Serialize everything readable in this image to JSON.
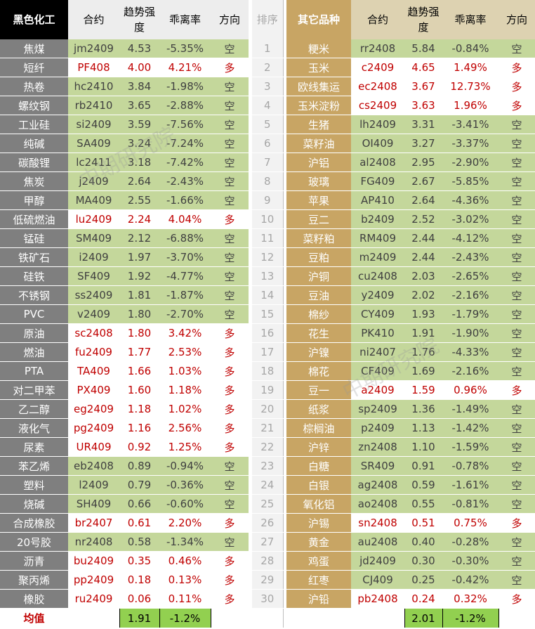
{
  "header": {
    "left_title": "黑色化工",
    "contract": "合约",
    "strength": "趋势强度",
    "deviation": "乖离率",
    "direction": "方向",
    "rank": "排序",
    "right_title": "其它品种"
  },
  "rows": [
    {
      "rank": "1",
      "left": {
        "name": "焦煤",
        "contract": "jm2409",
        "strength": "4.53",
        "deviation": "-5.35%",
        "direction": "空",
        "dir": "short"
      },
      "right": {
        "name": "粳米",
        "contract": "rr2408",
        "strength": "5.84",
        "deviation": "-0.84%",
        "direction": "空",
        "dir": "short"
      }
    },
    {
      "rank": "2",
      "left": {
        "name": "短纤",
        "contract": "PF408",
        "strength": "4.00",
        "deviation": "4.21%",
        "direction": "多",
        "dir": "long"
      },
      "right": {
        "name": "玉米",
        "contract": "c2409",
        "strength": "4.65",
        "deviation": "1.49%",
        "direction": "多",
        "dir": "long"
      }
    },
    {
      "rank": "3",
      "left": {
        "name": "热卷",
        "contract": "hc2410",
        "strength": "3.84",
        "deviation": "-1.98%",
        "direction": "空",
        "dir": "short"
      },
      "right": {
        "name": "欧线集运",
        "contract": "ec2408",
        "strength": "3.67",
        "deviation": "12.73%",
        "direction": "多",
        "dir": "long"
      }
    },
    {
      "rank": "4",
      "left": {
        "name": "螺纹钢",
        "contract": "rb2410",
        "strength": "3.65",
        "deviation": "-2.88%",
        "direction": "空",
        "dir": "short"
      },
      "right": {
        "name": "玉米淀粉",
        "contract": "cs2409",
        "strength": "3.63",
        "deviation": "1.96%",
        "direction": "多",
        "dir": "long"
      }
    },
    {
      "rank": "5",
      "left": {
        "name": "工业硅",
        "contract": "si2409",
        "strength": "3.59",
        "deviation": "-7.56%",
        "direction": "空",
        "dir": "short"
      },
      "right": {
        "name": "生猪",
        "contract": "lh2409",
        "strength": "3.31",
        "deviation": "-3.41%",
        "direction": "空",
        "dir": "short"
      }
    },
    {
      "rank": "6",
      "left": {
        "name": "纯碱",
        "contract": "SA409",
        "strength": "3.24",
        "deviation": "-7.24%",
        "direction": "空",
        "dir": "short"
      },
      "right": {
        "name": "菜籽油",
        "contract": "OI409",
        "strength": "3.27",
        "deviation": "-3.37%",
        "direction": "空",
        "dir": "short"
      }
    },
    {
      "rank": "7",
      "left": {
        "name": "碳酸锂",
        "contract": "lc2411",
        "strength": "3.18",
        "deviation": "-7.42%",
        "direction": "空",
        "dir": "short"
      },
      "right": {
        "name": "沪铝",
        "contract": "al2408",
        "strength": "2.95",
        "deviation": "-2.90%",
        "direction": "空",
        "dir": "short"
      }
    },
    {
      "rank": "8",
      "left": {
        "name": "焦炭",
        "contract": "j2409",
        "strength": "2.64",
        "deviation": "-2.43%",
        "direction": "空",
        "dir": "short"
      },
      "right": {
        "name": "玻璃",
        "contract": "FG409",
        "strength": "2.67",
        "deviation": "-5.85%",
        "direction": "空",
        "dir": "short"
      }
    },
    {
      "rank": "9",
      "left": {
        "name": "甲醇",
        "contract": "MA409",
        "strength": "2.55",
        "deviation": "-1.66%",
        "direction": "空",
        "dir": "short"
      },
      "right": {
        "name": "苹果",
        "contract": "AP410",
        "strength": "2.64",
        "deviation": "-4.36%",
        "direction": "空",
        "dir": "short"
      }
    },
    {
      "rank": "10",
      "left": {
        "name": "低硫燃油",
        "contract": "lu2409",
        "strength": "2.24",
        "deviation": "4.04%",
        "direction": "多",
        "dir": "long"
      },
      "right": {
        "name": "豆二",
        "contract": "b2409",
        "strength": "2.52",
        "deviation": "-3.02%",
        "direction": "空",
        "dir": "short"
      }
    },
    {
      "rank": "11",
      "left": {
        "name": "锰硅",
        "contract": "SM409",
        "strength": "2.12",
        "deviation": "-6.88%",
        "direction": "空",
        "dir": "short"
      },
      "right": {
        "name": "菜籽粕",
        "contract": "RM409",
        "strength": "2.44",
        "deviation": "-4.12%",
        "direction": "空",
        "dir": "short"
      }
    },
    {
      "rank": "12",
      "left": {
        "name": "铁矿石",
        "contract": "i2409",
        "strength": "1.97",
        "deviation": "-3.70%",
        "direction": "空",
        "dir": "short"
      },
      "right": {
        "name": "豆粕",
        "contract": "m2409",
        "strength": "2.44",
        "deviation": "-2.43%",
        "direction": "空",
        "dir": "short"
      }
    },
    {
      "rank": "13",
      "left": {
        "name": "硅铁",
        "contract": "SF409",
        "strength": "1.92",
        "deviation": "-4.77%",
        "direction": "空",
        "dir": "short"
      },
      "right": {
        "name": "沪铜",
        "contract": "cu2408",
        "strength": "2.03",
        "deviation": "-2.65%",
        "direction": "空",
        "dir": "short"
      }
    },
    {
      "rank": "14",
      "left": {
        "name": "不锈钢",
        "contract": "ss2409",
        "strength": "1.81",
        "deviation": "-1.87%",
        "direction": "空",
        "dir": "short"
      },
      "right": {
        "name": "豆油",
        "contract": "y2409",
        "strength": "2.02",
        "deviation": "-2.16%",
        "direction": "空",
        "dir": "short"
      }
    },
    {
      "rank": "15",
      "left": {
        "name": "PVC",
        "contract": "v2409",
        "strength": "1.80",
        "deviation": "-2.70%",
        "direction": "空",
        "dir": "short"
      },
      "right": {
        "name": "棉纱",
        "contract": "CY409",
        "strength": "1.93",
        "deviation": "-1.79%",
        "direction": "空",
        "dir": "short"
      }
    },
    {
      "rank": "16",
      "left": {
        "name": "原油",
        "contract": "sc2408",
        "strength": "1.80",
        "deviation": "3.42%",
        "direction": "多",
        "dir": "long"
      },
      "right": {
        "name": "花生",
        "contract": "PK410",
        "strength": "1.91",
        "deviation": "-1.90%",
        "direction": "空",
        "dir": "short"
      }
    },
    {
      "rank": "17",
      "left": {
        "name": "燃油",
        "contract": "fu2409",
        "strength": "1.77",
        "deviation": "2.53%",
        "direction": "多",
        "dir": "long"
      },
      "right": {
        "name": "沪镍",
        "contract": "ni2407",
        "strength": "1.76",
        "deviation": "-4.33%",
        "direction": "空",
        "dir": "short"
      }
    },
    {
      "rank": "18",
      "left": {
        "name": "PTA",
        "contract": "TA409",
        "strength": "1.66",
        "deviation": "1.03%",
        "direction": "多",
        "dir": "long"
      },
      "right": {
        "name": "棉花",
        "contract": "CF409",
        "strength": "1.69",
        "deviation": "-2.16%",
        "direction": "空",
        "dir": "short"
      }
    },
    {
      "rank": "19",
      "left": {
        "name": "对二甲苯",
        "contract": "PX409",
        "strength": "1.60",
        "deviation": "1.18%",
        "direction": "多",
        "dir": "long"
      },
      "right": {
        "name": "豆一",
        "contract": "a2409",
        "strength": "1.59",
        "deviation": "0.96%",
        "direction": "多",
        "dir": "long"
      }
    },
    {
      "rank": "20",
      "left": {
        "name": "乙二醇",
        "contract": "eg2409",
        "strength": "1.18",
        "deviation": "1.02%",
        "direction": "多",
        "dir": "long"
      },
      "right": {
        "name": "纸浆",
        "contract": "sp2409",
        "strength": "1.36",
        "deviation": "-1.49%",
        "direction": "空",
        "dir": "short"
      }
    },
    {
      "rank": "21",
      "left": {
        "name": "液化气",
        "contract": "pg2409",
        "strength": "1.16",
        "deviation": "2.56%",
        "direction": "多",
        "dir": "long"
      },
      "right": {
        "name": "棕榈油",
        "contract": "p2409",
        "strength": "1.13",
        "deviation": "-1.42%",
        "direction": "空",
        "dir": "short"
      }
    },
    {
      "rank": "22",
      "left": {
        "name": "尿素",
        "contract": "UR409",
        "strength": "0.92",
        "deviation": "1.25%",
        "direction": "多",
        "dir": "long"
      },
      "right": {
        "name": "沪锌",
        "contract": "zn2408",
        "strength": "1.10",
        "deviation": "-1.59%",
        "direction": "空",
        "dir": "short"
      }
    },
    {
      "rank": "23",
      "left": {
        "name": "苯乙烯",
        "contract": "eb2408",
        "strength": "0.89",
        "deviation": "-0.94%",
        "direction": "空",
        "dir": "short"
      },
      "right": {
        "name": "白糖",
        "contract": "SR409",
        "strength": "0.91",
        "deviation": "-0.78%",
        "direction": "空",
        "dir": "short"
      }
    },
    {
      "rank": "24",
      "left": {
        "name": "塑料",
        "contract": "l2409",
        "strength": "0.79",
        "deviation": "-0.36%",
        "direction": "空",
        "dir": "short"
      },
      "right": {
        "name": "白银",
        "contract": "ag2408",
        "strength": "0.59",
        "deviation": "-1.61%",
        "direction": "空",
        "dir": "short"
      }
    },
    {
      "rank": "25",
      "left": {
        "name": "烧碱",
        "contract": "SH409",
        "strength": "0.66",
        "deviation": "-0.60%",
        "direction": "空",
        "dir": "short"
      },
      "right": {
        "name": "氧化铝",
        "contract": "ao2408",
        "strength": "0.55",
        "deviation": "-0.81%",
        "direction": "空",
        "dir": "short"
      }
    },
    {
      "rank": "26",
      "left": {
        "name": "合成橡胶",
        "contract": "br2407",
        "strength": "0.61",
        "deviation": "2.20%",
        "direction": "多",
        "dir": "long"
      },
      "right": {
        "name": "沪锡",
        "contract": "sn2408",
        "strength": "0.51",
        "deviation": "0.75%",
        "direction": "多",
        "dir": "long"
      }
    },
    {
      "rank": "27",
      "left": {
        "name": "20号胶",
        "contract": "nr2408",
        "strength": "0.58",
        "deviation": "-1.34%",
        "direction": "空",
        "dir": "short"
      },
      "right": {
        "name": "黄金",
        "contract": "au2408",
        "strength": "0.40",
        "deviation": "-0.28%",
        "direction": "空",
        "dir": "short"
      }
    },
    {
      "rank": "28",
      "left": {
        "name": "沥青",
        "contract": "bu2409",
        "strength": "0.35",
        "deviation": "0.46%",
        "direction": "多",
        "dir": "long"
      },
      "right": {
        "name": "鸡蛋",
        "contract": "jd2409",
        "strength": "0.30",
        "deviation": "-0.30%",
        "direction": "空",
        "dir": "short"
      }
    },
    {
      "rank": "29",
      "left": {
        "name": "聚丙烯",
        "contract": "pp2409",
        "strength": "0.18",
        "deviation": "0.13%",
        "direction": "多",
        "dir": "long"
      },
      "right": {
        "name": "红枣",
        "contract": "CJ409",
        "strength": "0.25",
        "deviation": "-0.42%",
        "direction": "空",
        "dir": "short"
      }
    },
    {
      "rank": "30",
      "left": {
        "name": "橡胶",
        "contract": "ru2409",
        "strength": "0.06",
        "deviation": "0.11%",
        "direction": "多",
        "dir": "long"
      },
      "right": {
        "name": "沪铅",
        "contract": "pb2408",
        "strength": "0.24",
        "deviation": "0.32%",
        "direction": "多",
        "dir": "long"
      }
    }
  ],
  "footer": {
    "label": "均值",
    "left_strength": "1.91",
    "left_deviation": "-1.2%",
    "right_strength": "2.01",
    "right_deviation": "-1.2%"
  },
  "watermark": "中期研究院",
  "colors": {
    "short_bg": "#c4d79b",
    "long_text": "#c00000",
    "left_name_bg": "#7f7f7f",
    "right_name_bg": "#c8a564",
    "footer_value_bg": "#92d050"
  }
}
